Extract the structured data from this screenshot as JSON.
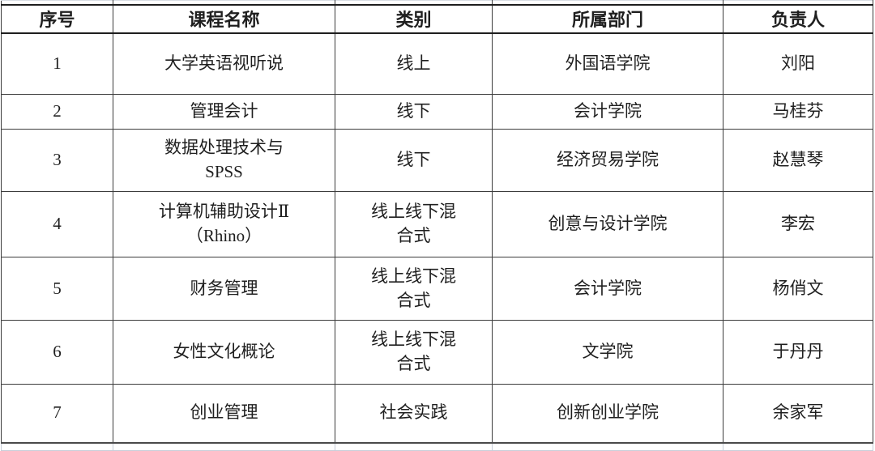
{
  "page": {
    "colors": {
      "background": "#ffffff",
      "text": "#1f1f1f",
      "grid_border": "#3c3c3c",
      "header_border": "#1e1e1e",
      "faint_gridline": "#c9ced9"
    }
  },
  "table": {
    "columns": [
      "序号",
      "课程名称",
      "类别",
      "所属部门",
      "负责人"
    ],
    "rows": [
      {
        "seq": "1",
        "course": "大学英语视听说",
        "category": "线上",
        "department": "外国语学院",
        "leader": "刘阳"
      },
      {
        "seq": "2",
        "course": "管理会计",
        "category": "线下",
        "department": "会计学院",
        "leader": "马桂芬"
      },
      {
        "seq": "3",
        "course": "数据处理技术与\nSPSS",
        "category": "线下",
        "department": "经济贸易学院",
        "leader": "赵慧琴"
      },
      {
        "seq": "4",
        "course": "计算机辅助设计Ⅱ\n（Rhino）",
        "category": "线上线下混\n合式",
        "department": "创意与设计学院",
        "leader": "李宏"
      },
      {
        "seq": "5",
        "course": "财务管理",
        "category": "线上线下混\n合式",
        "department": "会计学院",
        "leader": "杨俏文"
      },
      {
        "seq": "6",
        "course": "女性文化概论",
        "category": "线上线下混\n合式",
        "department": "文学院",
        "leader": "于丹丹"
      },
      {
        "seq": "7",
        "course": "创业管理",
        "category": "社会实践",
        "department": "创新创业学院",
        "leader": "余家军"
      }
    ]
  }
}
